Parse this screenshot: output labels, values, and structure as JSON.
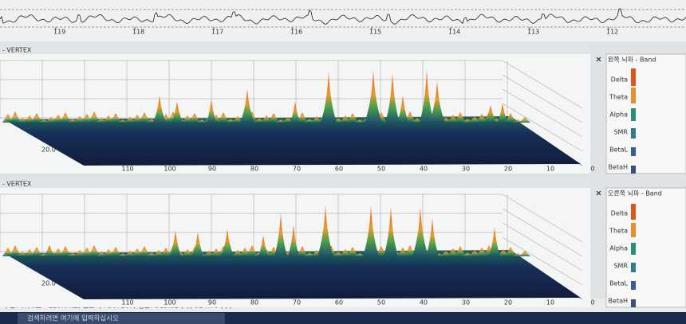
{
  "top_strip": {
    "ticks": [
      "119",
      "118",
      "117",
      "116",
      "115",
      "114",
      "113",
      "112"
    ]
  },
  "panels": [
    {
      "title": "- VERTEX",
      "band_title": "왼쪽 뇌파 - Band",
      "y_label": "20.0",
      "x_ticks": [
        "110",
        "100",
        "90",
        "80",
        "70",
        "60",
        "50",
        "40",
        "30",
        "20",
        "10",
        "0"
      ],
      "bands": [
        {
          "name": "Delta",
          "color": "#e0531c",
          "level": 22
        },
        {
          "name": "Theta",
          "color": "#e8902c",
          "level": 20
        },
        {
          "name": "Alpha",
          "color": "#2a8f7a",
          "level": 16
        },
        {
          "name": "SMR",
          "color": "#2f7a8c",
          "level": 13
        },
        {
          "name": "BetaL",
          "color": "#3a5f8c",
          "level": 11
        },
        {
          "name": "BetaH",
          "color": "#3a4f80",
          "level": 10
        }
      ]
    },
    {
      "title": "- VERTEX",
      "band_title": "오른쪽 뇌파 - Band",
      "y_label": "20.0",
      "x_ticks": [
        "110",
        "100",
        "90",
        "80",
        "70",
        "60",
        "50",
        "40",
        "30",
        "20",
        "10",
        "0"
      ],
      "bands": [
        {
          "name": "Delta",
          "color": "#e0531c",
          "level": 20
        },
        {
          "name": "Theta",
          "color": "#e8902c",
          "level": 18
        },
        {
          "name": "Alpha",
          "color": "#2a8f7a",
          "level": 15
        },
        {
          "name": "SMR",
          "color": "#2f7a8c",
          "level": 12
        },
        {
          "name": "BetaL",
          "color": "#3a5f8c",
          "level": 11
        },
        {
          "name": "BetaH",
          "color": "#3a4f80",
          "level": 10
        }
      ]
    }
  ],
  "status_bar": "구간: 0.00초 - 120.00초, 샘플 수: 307207, 평균: 513.32 (좌) 514.76 (우)",
  "taskbar": {
    "search": "검색하려면 여기에 입력하십시오"
  }
}
